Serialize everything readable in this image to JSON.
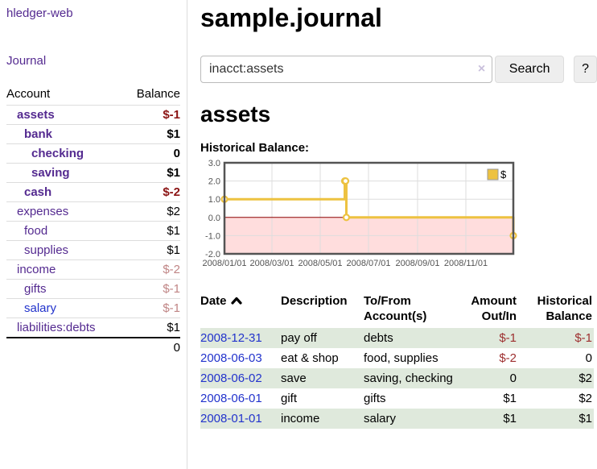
{
  "app": {
    "title": "hledger-web"
  },
  "sidebar": {
    "journal_link": "Journal",
    "accounts": {
      "header": {
        "account": "Account",
        "balance": "Balance"
      },
      "rows": [
        {
          "name": "assets",
          "indent": 0,
          "bold": true,
          "link": "purple",
          "balance": "$-1",
          "tone": "red"
        },
        {
          "name": "bank",
          "indent": 1,
          "bold": true,
          "link": "purple",
          "balance": "$1",
          "tone": "black"
        },
        {
          "name": "checking",
          "indent": 2,
          "bold": true,
          "link": "purple",
          "balance": "0",
          "tone": "black"
        },
        {
          "name": "saving",
          "indent": 2,
          "bold": true,
          "link": "purple",
          "balance": "$1",
          "tone": "black"
        },
        {
          "name": "cash",
          "indent": 1,
          "bold": true,
          "link": "purple",
          "balance": "$-2",
          "tone": "red"
        },
        {
          "name": "expenses",
          "indent": 0,
          "bold": false,
          "link": "purple",
          "balance": "$2",
          "tone": "black"
        },
        {
          "name": "food",
          "indent": 1,
          "bold": false,
          "link": "purple",
          "balance": "$1",
          "tone": "black"
        },
        {
          "name": "supplies",
          "indent": 1,
          "bold": false,
          "link": "purple",
          "balance": "$1",
          "tone": "black"
        },
        {
          "name": "income",
          "indent": 0,
          "bold": false,
          "link": "purple",
          "balance": "$-2",
          "tone": "rose"
        },
        {
          "name": "gifts",
          "indent": 1,
          "bold": false,
          "link": "purple",
          "balance": "$-1",
          "tone": "rose"
        },
        {
          "name": "salary",
          "indent": 1,
          "bold": false,
          "link": "blue",
          "balance": "$-1",
          "tone": "rose"
        },
        {
          "name": "liabilities:debts",
          "indent": 0,
          "bold": false,
          "link": "purple",
          "balance": "$1",
          "tone": "black"
        }
      ],
      "total": "0"
    }
  },
  "main": {
    "title": "sample.journal",
    "search": {
      "value": "inacct:assets",
      "clear_icon": "×",
      "search_button": "Search",
      "help_button": "?"
    },
    "account_heading": "assets",
    "section_heading": "Historical Balance:",
    "register": {
      "headers": [
        {
          "label": "Date",
          "align": "left",
          "sorted": "asc"
        },
        {
          "label": "Description",
          "align": "left"
        },
        {
          "label": "To/From\nAccount(s)",
          "align": "left"
        },
        {
          "label": "Amount\nOut/In",
          "align": "right"
        },
        {
          "label": "Historical\nBalance",
          "align": "right"
        }
      ],
      "rows": [
        {
          "date": "2008-12-31",
          "description": "pay off",
          "accounts": "debts",
          "amount": "$-1",
          "amount_neg": true,
          "balance": "$-1",
          "balance_neg": true,
          "striped": true
        },
        {
          "date": "2008-06-03",
          "description": "eat & shop",
          "accounts": "food, supplies",
          "amount": "$-2",
          "amount_neg": true,
          "balance": "0",
          "balance_neg": false,
          "striped": false
        },
        {
          "date": "2008-06-02",
          "description": "save",
          "accounts": "saving, checking",
          "amount": "0",
          "amount_neg": false,
          "balance": "$2",
          "balance_neg": false,
          "striped": true
        },
        {
          "date": "2008-06-01",
          "description": "gift",
          "accounts": "gifts",
          "amount": "$1",
          "amount_neg": false,
          "balance": "$2",
          "balance_neg": false,
          "striped": false
        },
        {
          "date": "2008-01-01",
          "description": "income",
          "accounts": "salary",
          "amount": "$1",
          "amount_neg": false,
          "balance": "$1",
          "balance_neg": false,
          "striped": true
        }
      ]
    }
  },
  "chart_data": {
    "type": "line",
    "title": "Historical Balance:",
    "step": true,
    "series": [
      {
        "name": "$",
        "color": "#edc240",
        "points": [
          [
            "2008-01-01",
            1
          ],
          [
            "2008-06-01",
            2
          ],
          [
            "2008-06-02",
            2
          ],
          [
            "2008-06-03",
            0
          ],
          [
            "2008-12-31",
            -1
          ]
        ]
      }
    ],
    "xrange": [
      "2008-01-01",
      "2008-12-31"
    ],
    "ylim": [
      -2,
      3
    ],
    "yticks": [
      3.0,
      2.0,
      1.0,
      0.0,
      -1.0,
      -2.0
    ],
    "xticks": [
      "2008/01/01",
      "2008/03/01",
      "2008/05/01",
      "2008/07/01",
      "2008/09/01",
      "2008/11/01"
    ],
    "legend": {
      "label": "$",
      "position": "top-right"
    },
    "grid_color": "#dddddd",
    "frame_color": "#545454",
    "tick_color": "#545454",
    "zero_line_color": "#8b0000",
    "negative_fill": "#ffdddd"
  },
  "colors": {
    "link_purple": "#542a90",
    "link_blue": "#2233cc",
    "negative_strong": "#8b1414",
    "negative_muted": "#c08585",
    "register_negative": "#9d2f2f",
    "row_stripe": "#dfe9dc",
    "chart_line": "#edc240"
  }
}
